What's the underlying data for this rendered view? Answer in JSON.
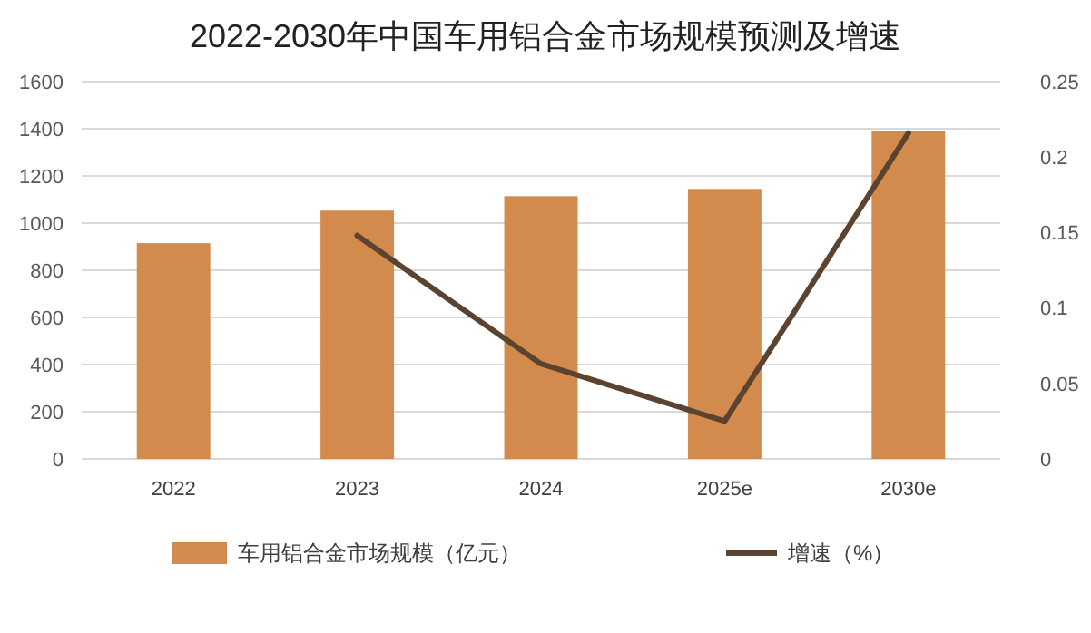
{
  "chart_data": {
    "type": "bar",
    "title": "2022-2030年中国车用铝合金市场规模预测及增速",
    "categories": [
      "2022",
      "2023",
      "2024",
      "2025e",
      "2030e"
    ],
    "series": [
      {
        "name": "车用铝合金市场规模（亿元）",
        "color": "#d38b4d",
        "values": [
          915,
          1053,
          1114,
          1145,
          1391
        ]
      },
      {
        "name": "增速（%）",
        "type": "line",
        "axis": "y2",
        "color": "#5c4330",
        "values": [
          null,
          0.148,
          0.063,
          0.025,
          0.216
        ]
      }
    ],
    "ylim": [
      0,
      1600
    ],
    "yticks": [
      0,
      200,
      400,
      600,
      800,
      1000,
      1200,
      1400,
      1600
    ],
    "y2lim": [
      0,
      0.25
    ],
    "y2ticks": [
      0,
      0.05,
      0.1,
      0.15,
      0.2,
      0.25
    ],
    "grid": "y",
    "legend": "bottom"
  }
}
